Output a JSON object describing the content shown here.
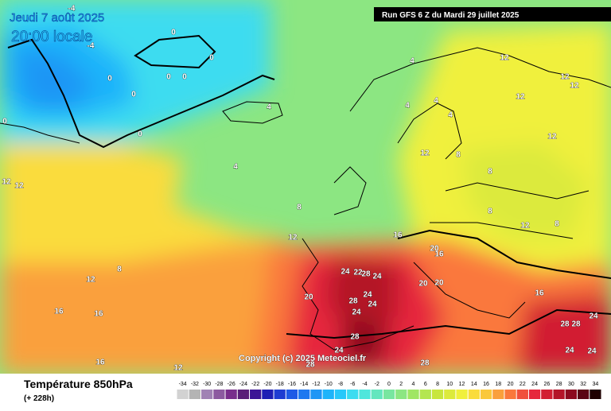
{
  "header": {
    "valid_date": "Jeudi 7 août 2025",
    "local_time": "20:00 locale",
    "run": "Run GFS 6 Z du Mardi 29 juillet 2025"
  },
  "copyright": "Copyright (c) 2025 Meteociel.fr",
  "footer": {
    "title": "Température 850hPa",
    "lead": "(+ 228h)"
  },
  "scale": {
    "values": [
      -34,
      -32,
      -30,
      -28,
      -26,
      -24,
      -22,
      -20,
      -18,
      -16,
      -14,
      -12,
      -10,
      -8,
      -6,
      -4,
      -2,
      0,
      2,
      4,
      6,
      8,
      10,
      12,
      14,
      16,
      18,
      20,
      22,
      24,
      26,
      28,
      30,
      32,
      34
    ],
    "colors": [
      "#d2d2d2",
      "#b4b4b4",
      "#a082b4",
      "#8c5aa0",
      "#782d8c",
      "#5a1e78",
      "#3c1496",
      "#1e1eb4",
      "#1e3cd2",
      "#1e5ae6",
      "#1e78f0",
      "#1e96f5",
      "#1eb4fa",
      "#28c8fa",
      "#3cdcf0",
      "#50e6dc",
      "#64e6be",
      "#78e6a0",
      "#8ce682",
      "#a0e664",
      "#b4e650",
      "#c8e63c",
      "#dcea3c",
      "#f0f03c",
      "#fadc3c",
      "#fac83c",
      "#faa03c",
      "#fa783c",
      "#f0503c",
      "#e6283c",
      "#d21e32",
      "#b41428",
      "#8c0a1e",
      "#5a0514",
      "#1e0000"
    ]
  },
  "map_labels": [
    "-4",
    "-4",
    "0",
    "0",
    "0",
    "0",
    "0",
    "0",
    "0",
    "0",
    "4",
    "4",
    "4",
    "4",
    "4",
    "4",
    "8",
    "8",
    "8",
    "8",
    "8",
    "8",
    "12",
    "12",
    "12",
    "12",
    "12",
    "12",
    "12",
    "12",
    "12",
    "12",
    "12",
    "12",
    "16",
    "16",
    "16",
    "16",
    "16",
    "16",
    "20",
    "20",
    "20",
    "20",
    "24",
    "24",
    "24",
    "24",
    "24",
    "24",
    "24",
    "24",
    "24",
    "28",
    "28",
    "28",
    "28",
    "28",
    "28",
    "28",
    "22"
  ]
}
